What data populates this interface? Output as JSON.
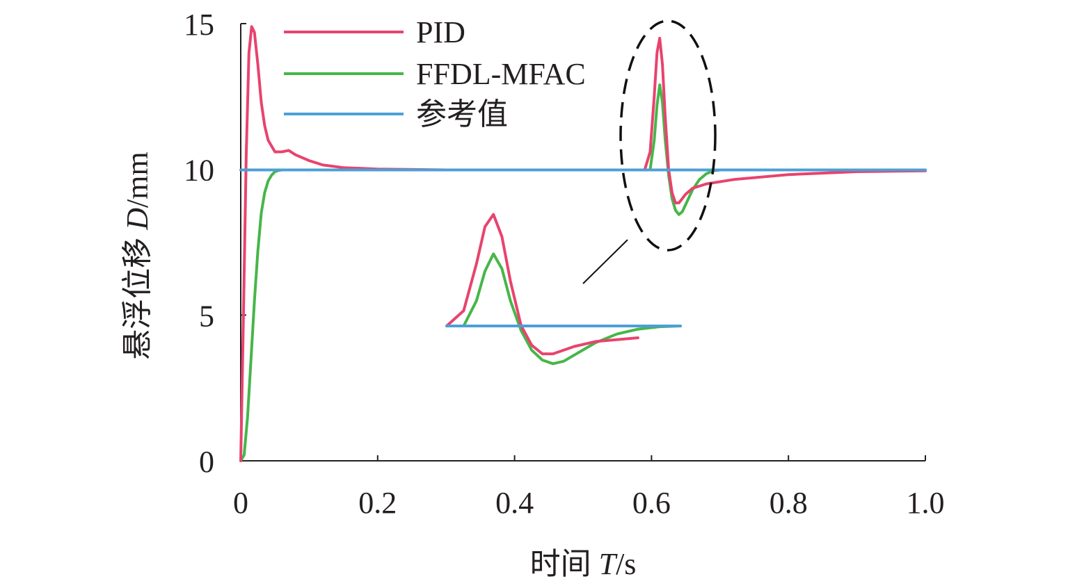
{
  "chart_data": {
    "type": "line",
    "ylabel": "悬浮位移",
    "ylabel_var": "D",
    "ylabel_unit": "/mm",
    "xlabel": "时间",
    "xlabel_var": "T",
    "xlabel_unit": "/s",
    "xlim": [
      0,
      1.0
    ],
    "ylim": [
      0,
      15
    ],
    "xticks": [
      "0",
      "0.2",
      "0.4",
      "0.6",
      "0.8",
      "1.0"
    ],
    "yticks": [
      "0",
      "5",
      "10",
      "15"
    ],
    "grid": false,
    "legend_position": "top-center",
    "series": [
      {
        "name": "PID",
        "color": "#e8436e",
        "x": [
          0,
          0.004,
          0.008,
          0.012,
          0.016,
          0.02,
          0.025,
          0.03,
          0.035,
          0.04,
          0.05,
          0.06,
          0.07,
          0.08,
          0.1,
          0.12,
          0.15,
          0.2,
          0.3,
          0.4,
          0.5,
          0.59,
          0.598,
          0.604,
          0.608,
          0.612,
          0.616,
          0.62,
          0.625,
          0.63,
          0.635,
          0.64,
          0.65,
          0.66,
          0.68,
          0.72,
          0.8,
          0.9,
          1.0
        ],
        "y": [
          0,
          5,
          10.5,
          14.0,
          14.9,
          14.7,
          13.6,
          12.3,
          11.5,
          11.0,
          10.6,
          10.6,
          10.65,
          10.5,
          10.3,
          10.15,
          10.06,
          10.01,
          9.98,
          9.98,
          9.98,
          9.98,
          10.6,
          12.5,
          14.0,
          14.5,
          13.6,
          11.8,
          10.0,
          9.2,
          8.85,
          8.85,
          9.15,
          9.35,
          9.5,
          9.65,
          9.82,
          9.92,
          9.95
        ]
      },
      {
        "name": "FFDL-MFAC",
        "color": "#46b649",
        "x": [
          0,
          0.005,
          0.01,
          0.015,
          0.02,
          0.025,
          0.03,
          0.035,
          0.04,
          0.045,
          0.05,
          0.055,
          0.06,
          0.08,
          0.2,
          0.4,
          0.598,
          0.604,
          0.608,
          0.612,
          0.616,
          0.62,
          0.625,
          0.63,
          0.635,
          0.64,
          0.645,
          0.65,
          0.66,
          0.67,
          0.68,
          0.69,
          0.7,
          0.8,
          0.9,
          1.0
        ],
        "y": [
          0,
          0.2,
          1.5,
          3.5,
          5.5,
          7.2,
          8.5,
          9.2,
          9.6,
          9.8,
          9.92,
          9.96,
          9.98,
          9.98,
          9.98,
          9.98,
          9.98,
          11.0,
          12.2,
          12.9,
          12.3,
          11.0,
          9.8,
          9.0,
          8.6,
          8.45,
          8.55,
          8.8,
          9.3,
          9.65,
          9.85,
          9.95,
          9.98,
          9.98,
          9.98,
          9.98
        ]
      },
      {
        "name": "参考值",
        "color": "#4d9fd6",
        "x": [
          0,
          1.0
        ],
        "y": [
          9.98,
          9.98
        ]
      }
    ]
  }
}
